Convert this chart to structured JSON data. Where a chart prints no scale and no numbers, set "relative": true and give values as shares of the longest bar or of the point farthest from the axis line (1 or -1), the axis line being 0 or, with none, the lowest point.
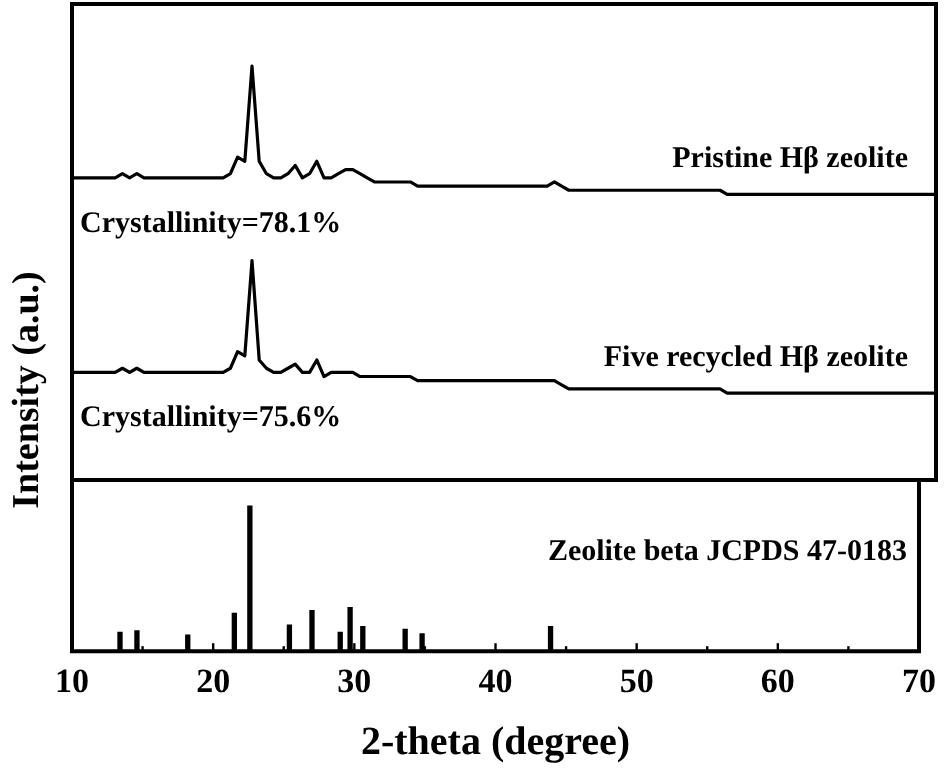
{
  "chart_data": [
    {
      "type": "line",
      "relative": true,
      "ylabel": "Intensity (a.u.)",
      "tick_labels": false,
      "grid": false,
      "legend": false,
      "marker": "none",
      "line_style": "solid",
      "categories": [
        null,
        null,
        null,
        null,
        null,
        null,
        null,
        null,
        null,
        null,
        null,
        null,
        null,
        null,
        null,
        null,
        null,
        null,
        null,
        null,
        null,
        null,
        null,
        null,
        null,
        null,
        null,
        null,
        null,
        null,
        null,
        null,
        null,
        null,
        null,
        null,
        null,
        null,
        null,
        null,
        null,
        null,
        null,
        null,
        null,
        null,
        null,
        null,
        null,
        null,
        null,
        null,
        null,
        null,
        null,
        null,
        null,
        null,
        null,
        null,
        null,
        null,
        null,
        null,
        null,
        null,
        null,
        null,
        null,
        null,
        null,
        null,
        null,
        null,
        null,
        null,
        null,
        null,
        null,
        null,
        null,
        null,
        null,
        null,
        null,
        null,
        null,
        null,
        null,
        null,
        null,
        null,
        null,
        null,
        null,
        null,
        null,
        null,
        null,
        null,
        null,
        null,
        null,
        null,
        null,
        null,
        null,
        null,
        null,
        null,
        null,
        null,
        null,
        null,
        null,
        null,
        null,
        null,
        null,
        null,
        null
      ],
      "series": [
        {
          "name": "Pristine Hβ zeolite",
          "color": "#000000",
          "values": [
            0.73,
            0.73,
            0.73,
            0.73,
            0.73,
            0.73,
            0.73,
            0.74,
            0.73,
            0.74,
            0.73,
            0.73,
            0.73,
            0.73,
            0.73,
            0.73,
            0.73,
            0.73,
            0.73,
            0.73,
            0.73,
            0.73,
            0.74,
            0.78,
            0.77,
            1,
            0.77,
            0.74,
            0.73,
            0.73,
            0.74,
            0.76,
            0.73,
            0.74,
            0.77,
            0.73,
            0.73,
            0.74,
            0.75,
            0.75,
            0.74,
            0.73,
            0.72,
            0.72,
            0.72,
            0.72,
            0.72,
            0.72,
            0.71,
            0.71,
            0.71,
            0.71,
            0.71,
            0.71,
            0.71,
            0.71,
            0.71,
            0.71,
            0.71,
            0.71,
            0.71,
            0.71,
            0.71,
            0.71,
            0.71,
            0.71,
            0.71,
            0.72,
            0.71,
            0.7,
            0.7,
            0.7,
            0.7,
            0.7,
            0.7,
            0.7,
            0.7,
            0.7,
            0.7,
            0.7,
            0.7,
            0.7,
            0.7,
            0.7,
            0.7,
            0.7,
            0.7,
            0.7,
            0.7,
            0.7,
            0.7,
            0.69,
            0.69,
            0.69,
            0.69,
            0.69,
            0.69,
            0.69,
            0.69,
            0.69,
            0.69,
            0.69,
            0.69,
            0.69,
            0.69,
            0.69,
            0.69,
            0.69,
            0.69,
            0.69,
            0.69,
            0.69,
            0.69,
            0.69,
            0.69,
            0.69,
            0.69,
            0.69,
            0.69,
            0.69,
            0.69
          ]
        },
        {
          "name": "Five recycled Hβ zeolite",
          "color": "#000000",
          "values": [
            0.26,
            0.26,
            0.26,
            0.26,
            0.26,
            0.26,
            0.26,
            0.27,
            0.26,
            0.27,
            0.26,
            0.26,
            0.26,
            0.26,
            0.26,
            0.26,
            0.26,
            0.26,
            0.26,
            0.26,
            0.26,
            0.26,
            0.27,
            0.31,
            0.3,
            0.53,
            0.29,
            0.27,
            0.26,
            0.26,
            0.27,
            0.28,
            0.26,
            0.26,
            0.29,
            0.25,
            0.26,
            0.26,
            0.26,
            0.26,
            0.25,
            0.25,
            0.25,
            0.25,
            0.25,
            0.25,
            0.25,
            0.25,
            0.24,
            0.24,
            0.24,
            0.24,
            0.24,
            0.24,
            0.24,
            0.24,
            0.24,
            0.24,
            0.24,
            0.24,
            0.24,
            0.24,
            0.24,
            0.24,
            0.24,
            0.24,
            0.24,
            0.24,
            0.23,
            0.22,
            0.22,
            0.22,
            0.22,
            0.22,
            0.22,
            0.22,
            0.22,
            0.22,
            0.22,
            0.22,
            0.22,
            0.22,
            0.22,
            0.22,
            0.22,
            0.22,
            0.22,
            0.22,
            0.22,
            0.22,
            0.22,
            0.21,
            0.21,
            0.21,
            0.21,
            0.21,
            0.21,
            0.21,
            0.21,
            0.21,
            0.21,
            0.21,
            0.21,
            0.21,
            0.21,
            0.21,
            0.21,
            0.21,
            0.21,
            0.21,
            0.21,
            0.21,
            0.21,
            0.21,
            0.21,
            0.21,
            0.21,
            0.21,
            0.21,
            0.21,
            0.21
          ]
        }
      ],
      "annotations": [
        "Crystallinity=78.1%",
        "Crystallinity=75.6%"
      ]
    },
    {
      "type": "bar",
      "relative": true,
      "xlabel": "2-theta (degree)",
      "xlim": [
        10,
        70
      ],
      "tick_labels": "x",
      "grid": false,
      "legend": false,
      "xticks": [
        10,
        {
          "value": 15,
          "label": null
        },
        20,
        {
          "value": 25,
          "label": null
        },
        30,
        {
          "value": 35,
          "label": null
        },
        40,
        {
          "value": 45,
          "label": null
        },
        50,
        {
          "value": 55,
          "label": null
        },
        60,
        {
          "value": 65,
          "label": null
        },
        70
      ],
      "x": [
        13.4,
        14.6,
        18.2,
        21.5,
        22.6,
        25.4,
        27.0,
        29.0,
        29.7,
        30.6,
        33.6,
        34.8,
        43.9
      ],
      "series": [
        {
          "name": "Zeolite beta JCPDS 47-0183",
          "color": "#000000",
          "values": [
            0.13,
            0.14,
            0.11,
            0.26,
            1,
            0.18,
            0.28,
            0.13,
            0.3,
            0.17,
            0.15,
            0.12,
            0.17
          ]
        }
      ]
    }
  ]
}
